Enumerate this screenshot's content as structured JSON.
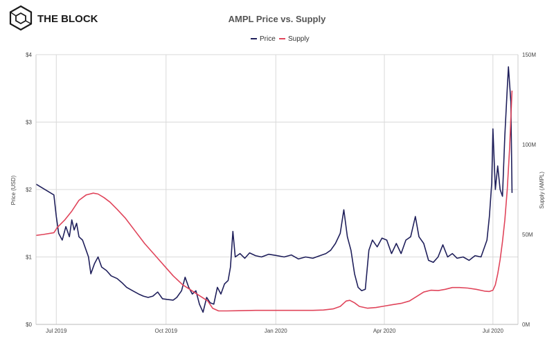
{
  "brand": {
    "name": "THE BLOCK",
    "logo_icon": "cube-logo-icon"
  },
  "chart_data": {
    "type": "line",
    "title": "AMPL Price vs. Supply",
    "ylabel_left": "Price (USD)",
    "ylabel_right": "Supply (AMPL)",
    "legend_position": "top-center",
    "grid": true,
    "x_range": [
      "2019-06-14",
      "2020-07-22"
    ],
    "x_ticks": [
      {
        "date": "2019-07-01",
        "label": "Jul 2019"
      },
      {
        "date": "2019-10-01",
        "label": "Oct 2019"
      },
      {
        "date": "2020-01-01",
        "label": "Jan 2020"
      },
      {
        "date": "2020-04-01",
        "label": "Apr 2020"
      },
      {
        "date": "2020-07-01",
        "label": "Jul 2020"
      }
    ],
    "y_left": {
      "range": [
        0,
        4
      ],
      "ticks": [
        {
          "v": 0,
          "label": "$0"
        },
        {
          "v": 1,
          "label": "$1"
        },
        {
          "v": 2,
          "label": "$2"
        },
        {
          "v": 3,
          "label": "$3"
        },
        {
          "v": 4,
          "label": "$4"
        }
      ]
    },
    "y_right": {
      "range": [
        0,
        150
      ],
      "unit": "M",
      "ticks": [
        {
          "v": 0,
          "label": "0M"
        },
        {
          "v": 50,
          "label": "50M"
        },
        {
          "v": 100,
          "label": "100M"
        },
        {
          "v": 150,
          "label": "150M"
        }
      ]
    },
    "series": [
      {
        "name": "Price",
        "axis": "left",
        "color": "#1f1f5b",
        "points": [
          [
            "2019-06-14",
            2.08
          ],
          [
            "2019-06-29",
            1.92
          ],
          [
            "2019-07-01",
            1.6
          ],
          [
            "2019-07-03",
            1.35
          ],
          [
            "2019-07-06",
            1.25
          ],
          [
            "2019-07-09",
            1.45
          ],
          [
            "2019-07-12",
            1.3
          ],
          [
            "2019-07-14",
            1.55
          ],
          [
            "2019-07-16",
            1.4
          ],
          [
            "2019-07-18",
            1.5
          ],
          [
            "2019-07-20",
            1.3
          ],
          [
            "2019-07-23",
            1.25
          ],
          [
            "2019-07-26",
            1.1
          ],
          [
            "2019-07-28",
            1.0
          ],
          [
            "2019-07-30",
            0.75
          ],
          [
            "2019-08-02",
            0.9
          ],
          [
            "2019-08-05",
            1.0
          ],
          [
            "2019-08-08",
            0.85
          ],
          [
            "2019-08-12",
            0.8
          ],
          [
            "2019-08-16",
            0.72
          ],
          [
            "2019-08-21",
            0.68
          ],
          [
            "2019-08-25",
            0.62
          ],
          [
            "2019-08-29",
            0.55
          ],
          [
            "2019-09-03",
            0.5
          ],
          [
            "2019-09-08",
            0.45
          ],
          [
            "2019-09-12",
            0.42
          ],
          [
            "2019-09-16",
            0.4
          ],
          [
            "2019-09-20",
            0.42
          ],
          [
            "2019-09-24",
            0.48
          ],
          [
            "2019-09-28",
            0.38
          ],
          [
            "2019-10-02",
            0.37
          ],
          [
            "2019-10-07",
            0.36
          ],
          [
            "2019-10-10",
            0.4
          ],
          [
            "2019-10-14",
            0.5
          ],
          [
            "2019-10-17",
            0.7
          ],
          [
            "2019-10-20",
            0.55
          ],
          [
            "2019-10-23",
            0.45
          ],
          [
            "2019-10-26",
            0.5
          ],
          [
            "2019-10-29",
            0.3
          ],
          [
            "2019-11-01",
            0.18
          ],
          [
            "2019-11-04",
            0.4
          ],
          [
            "2019-11-07",
            0.32
          ],
          [
            "2019-11-10",
            0.3
          ],
          [
            "2019-11-13",
            0.55
          ],
          [
            "2019-11-16",
            0.45
          ],
          [
            "2019-11-19",
            0.6
          ],
          [
            "2019-11-22",
            0.65
          ],
          [
            "2019-11-24",
            0.85
          ],
          [
            "2019-11-26",
            1.38
          ],
          [
            "2019-11-28",
            1.0
          ],
          [
            "2019-12-02",
            1.05
          ],
          [
            "2019-12-06",
            0.98
          ],
          [
            "2019-12-10",
            1.06
          ],
          [
            "2019-12-15",
            1.02
          ],
          [
            "2019-12-20",
            1.0
          ],
          [
            "2019-12-26",
            1.04
          ],
          [
            "2020-01-02",
            1.02
          ],
          [
            "2020-01-08",
            1.0
          ],
          [
            "2020-01-14",
            1.03
          ],
          [
            "2020-01-20",
            0.97
          ],
          [
            "2020-01-26",
            1.0
          ],
          [
            "2020-02-01",
            0.98
          ],
          [
            "2020-02-07",
            1.02
          ],
          [
            "2020-02-12",
            1.05
          ],
          [
            "2020-02-16",
            1.1
          ],
          [
            "2020-02-20",
            1.2
          ],
          [
            "2020-02-24",
            1.35
          ],
          [
            "2020-02-27",
            1.7
          ],
          [
            "2020-03-01",
            1.3
          ],
          [
            "2020-03-04",
            1.1
          ],
          [
            "2020-03-07",
            0.75
          ],
          [
            "2020-03-10",
            0.55
          ],
          [
            "2020-03-13",
            0.5
          ],
          [
            "2020-03-16",
            0.52
          ],
          [
            "2020-03-19",
            1.1
          ],
          [
            "2020-03-22",
            1.25
          ],
          [
            "2020-03-26",
            1.15
          ],
          [
            "2020-03-30",
            1.28
          ],
          [
            "2020-04-03",
            1.25
          ],
          [
            "2020-04-07",
            1.05
          ],
          [
            "2020-04-11",
            1.2
          ],
          [
            "2020-04-15",
            1.05
          ],
          [
            "2020-04-19",
            1.25
          ],
          [
            "2020-04-23",
            1.3
          ],
          [
            "2020-04-27",
            1.6
          ],
          [
            "2020-04-30",
            1.3
          ],
          [
            "2020-05-04",
            1.2
          ],
          [
            "2020-05-08",
            0.95
          ],
          [
            "2020-05-12",
            0.92
          ],
          [
            "2020-05-16",
            1.0
          ],
          [
            "2020-05-20",
            1.18
          ],
          [
            "2020-05-24",
            1.0
          ],
          [
            "2020-05-28",
            1.05
          ],
          [
            "2020-06-01",
            0.98
          ],
          [
            "2020-06-06",
            1.0
          ],
          [
            "2020-06-11",
            0.95
          ],
          [
            "2020-06-16",
            1.02
          ],
          [
            "2020-06-21",
            1.0
          ],
          [
            "2020-06-26",
            1.25
          ],
          [
            "2020-06-28",
            1.6
          ],
          [
            "2020-06-30",
            2.1
          ],
          [
            "2020-07-01",
            2.9
          ],
          [
            "2020-07-03",
            2.0
          ],
          [
            "2020-07-05",
            2.35
          ],
          [
            "2020-07-07",
            2.0
          ],
          [
            "2020-07-09",
            1.9
          ],
          [
            "2020-07-11",
            2.8
          ],
          [
            "2020-07-13",
            3.5
          ],
          [
            "2020-07-14",
            3.82
          ],
          [
            "2020-07-16",
            3.3
          ],
          [
            "2020-07-17",
            1.95
          ]
        ]
      },
      {
        "name": "Supply",
        "axis": "right",
        "color": "#e0445a",
        "points": [
          [
            "2019-06-14",
            49.5
          ],
          [
            "2019-06-20",
            50
          ],
          [
            "2019-06-29",
            51
          ],
          [
            "2019-07-02",
            54
          ],
          [
            "2019-07-08",
            58
          ],
          [
            "2019-07-14",
            63
          ],
          [
            "2019-07-20",
            69
          ],
          [
            "2019-07-26",
            72
          ],
          [
            "2019-08-01",
            73
          ],
          [
            "2019-08-05",
            72.5
          ],
          [
            "2019-08-10",
            70.5
          ],
          [
            "2019-08-15",
            68
          ],
          [
            "2019-08-21",
            64
          ],
          [
            "2019-08-28",
            59
          ],
          [
            "2019-09-05",
            52
          ],
          [
            "2019-09-13",
            45
          ],
          [
            "2019-09-21",
            39
          ],
          [
            "2019-09-29",
            33
          ],
          [
            "2019-10-07",
            27
          ],
          [
            "2019-10-15",
            22
          ],
          [
            "2019-10-22",
            19
          ],
          [
            "2019-10-29",
            16
          ],
          [
            "2019-11-05",
            13
          ],
          [
            "2019-11-09",
            9
          ],
          [
            "2019-11-14",
            7.5
          ],
          [
            "2019-11-21",
            7.5
          ],
          [
            "2019-12-01",
            7.6
          ],
          [
            "2019-12-15",
            7.8
          ],
          [
            "2020-01-01",
            7.8
          ],
          [
            "2020-01-15",
            7.8
          ],
          [
            "2020-02-01",
            7.8
          ],
          [
            "2020-02-10",
            8
          ],
          [
            "2020-02-18",
            8.6
          ],
          [
            "2020-02-24",
            10
          ],
          [
            "2020-02-29",
            13
          ],
          [
            "2020-03-03",
            13.4
          ],
          [
            "2020-03-07",
            12
          ],
          [
            "2020-03-11",
            10
          ],
          [
            "2020-03-18",
            9
          ],
          [
            "2020-03-25",
            9.4
          ],
          [
            "2020-04-01",
            10.2
          ],
          [
            "2020-04-08",
            11
          ],
          [
            "2020-04-15",
            11.7
          ],
          [
            "2020-04-22",
            13
          ],
          [
            "2020-04-28",
            15.5
          ],
          [
            "2020-05-04",
            18
          ],
          [
            "2020-05-10",
            19
          ],
          [
            "2020-05-16",
            18.8
          ],
          [
            "2020-05-22",
            19.5
          ],
          [
            "2020-05-28",
            20.5
          ],
          [
            "2020-06-03",
            20.5
          ],
          [
            "2020-06-10",
            20.2
          ],
          [
            "2020-06-17",
            19.5
          ],
          [
            "2020-06-24",
            18.5
          ],
          [
            "2020-06-28",
            18.3
          ],
          [
            "2020-07-01",
            19
          ],
          [
            "2020-07-03",
            22
          ],
          [
            "2020-07-05",
            28
          ],
          [
            "2020-07-07",
            36
          ],
          [
            "2020-07-09",
            46
          ],
          [
            "2020-07-11",
            58
          ],
          [
            "2020-07-13",
            75
          ],
          [
            "2020-07-15",
            98
          ],
          [
            "2020-07-16",
            115
          ],
          [
            "2020-07-17",
            130
          ]
        ]
      }
    ]
  }
}
